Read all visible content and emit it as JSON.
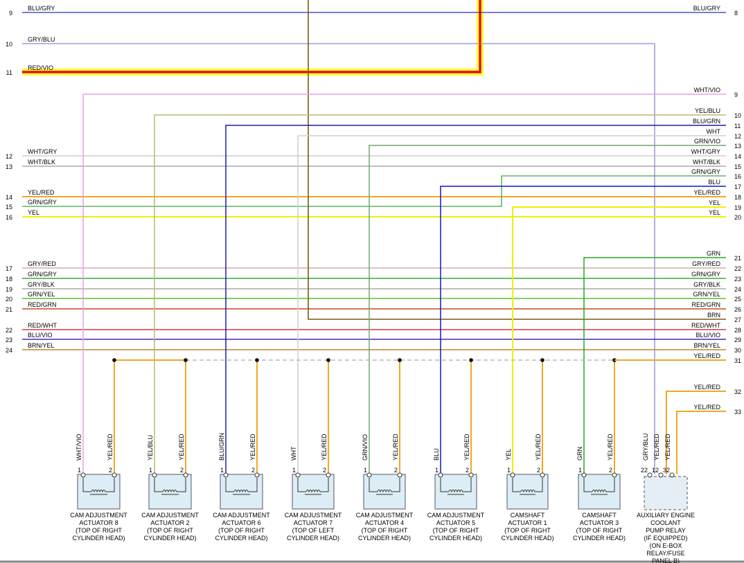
{
  "left_wires": [
    {
      "pin": "9",
      "label": "BLU/GRY"
    },
    {
      "pin": "10",
      "label": "GRY/BLU"
    },
    {
      "pin": "11",
      "label": "RED/VIO"
    },
    {
      "pin": "12",
      "label": "WHT/GRY"
    },
    {
      "pin": "13",
      "label": "WHT/BLK"
    },
    {
      "pin": "14",
      "label": "YEL/RED"
    },
    {
      "pin": "15",
      "label": "GRN/GRY"
    },
    {
      "pin": "16",
      "label": "YEL"
    },
    {
      "pin": "17",
      "label": "GRY/RED"
    },
    {
      "pin": "18",
      "label": "GRN/GRY"
    },
    {
      "pin": "19",
      "label": "GRY/BLK"
    },
    {
      "pin": "20",
      "label": "GRN/YEL"
    },
    {
      "pin": "21",
      "label": "RED/GRN"
    },
    {
      "pin": "22",
      "label": "RED/WHT"
    },
    {
      "pin": "23",
      "label": "BLU/VIO"
    },
    {
      "pin": "24",
      "label": "BRN/YEL"
    }
  ],
  "right_wires": [
    {
      "pin": "8",
      "label": "BLU/GRY"
    },
    {
      "pin": "9",
      "label": "WHT/VIO"
    },
    {
      "pin": "10",
      "label": "YEL/BLU"
    },
    {
      "pin": "11",
      "label": "BLU/GRN"
    },
    {
      "pin": "12",
      "label": "WHT"
    },
    {
      "pin": "13",
      "label": "GRN/VIO"
    },
    {
      "pin": "14",
      "label": "WHT/GRY"
    },
    {
      "pin": "15",
      "label": "WHT/BLK"
    },
    {
      "pin": "16",
      "label": "GRN/GRY"
    },
    {
      "pin": "17",
      "label": "BLU"
    },
    {
      "pin": "18",
      "label": "YEL/RED"
    },
    {
      "pin": "19",
      "label": "YEL"
    },
    {
      "pin": "20",
      "label": "YEL"
    },
    {
      "pin": "21",
      "label": "GRN"
    },
    {
      "pin": "22",
      "label": "GRY/RED"
    },
    {
      "pin": "23",
      "label": "GRN/GRY"
    },
    {
      "pin": "24",
      "label": "GRY/BLK"
    },
    {
      "pin": "25",
      "label": "GRN/YEL"
    },
    {
      "pin": "26",
      "label": "RED/GRN"
    },
    {
      "pin": "27",
      "label": "BRN"
    },
    {
      "pin": "28",
      "label": "RED/WHT"
    },
    {
      "pin": "29",
      "label": "BLU/VIO"
    },
    {
      "pin": "30",
      "label": "BRN/YEL"
    },
    {
      "pin": "31",
      "label": "YEL/RED"
    },
    {
      "pin": "32",
      "label": "YEL/RED"
    },
    {
      "pin": "33",
      "label": "YEL/RED"
    }
  ],
  "components": [
    {
      "pins": [
        "1",
        "2"
      ],
      "wires": [
        "WHT/VIO",
        "YEL/RED"
      ],
      "name": [
        "CAM ADJUSTMENT",
        "ACTUATOR 8",
        "(TOP OF RIGHT",
        "CYLINDER HEAD)"
      ]
    },
    {
      "pins": [
        "1",
        "2"
      ],
      "wires": [
        "YEL/BLU",
        "YEL/RED"
      ],
      "name": [
        "CAM ADJUSTMENT",
        "ACTUATOR 2",
        "(TOP OF RIGHT",
        "CYLINDER HEAD)"
      ]
    },
    {
      "pins": [
        "1",
        "2"
      ],
      "wires": [
        "BLU/GRN",
        "YEL/RED"
      ],
      "name": [
        "CAM ADJUSTMENT",
        "ACTUATOR 6",
        "(TOP OF RIGHT",
        "CYLINDER HEAD)"
      ]
    },
    {
      "pins": [
        "1",
        "2"
      ],
      "wires": [
        "WHT",
        "YEL/RED"
      ],
      "name": [
        "CAM ADJUSTMENT",
        "ACTUATOR 7",
        "(TOP OF LEFT",
        "CYLINDER HEAD)"
      ]
    },
    {
      "pins": [
        "1",
        "2"
      ],
      "wires": [
        "GRN/VIO",
        "YEL/RED"
      ],
      "name": [
        "CAM ADJUSTMENT",
        "ACTUATOR 4",
        "(TOP OF RIGHT",
        "CYLINDER HEAD)"
      ]
    },
    {
      "pins": [
        "1",
        "2"
      ],
      "wires": [
        "BLU",
        "YEL/RED"
      ],
      "name": [
        "CAM ADJUSTMENT",
        "ACTUATOR 5",
        "(TOP OF RIGHT",
        "CYLINDER HEAD)"
      ]
    },
    {
      "pins": [
        "1",
        "2"
      ],
      "wires": [
        "YEL",
        "YEL/RED"
      ],
      "name": [
        "CAMSHAFT",
        "ACTUATOR 1",
        "(TOP OF RIGHT",
        "CYLINDER HEAD)"
      ]
    },
    {
      "pins": [
        "1",
        "2"
      ],
      "wires": [
        "GRN",
        "YEL/RED"
      ],
      "name": [
        "CAMSHAFT",
        "ACTUATOR 3",
        "(TOP OF RIGHT",
        "CYLINDER HEAD)"
      ]
    },
    {
      "pins": [
        "22",
        "12",
        "32"
      ],
      "wires": [
        "GRY/BLU",
        "YEL/RED",
        "YEL/RED"
      ],
      "name": [
        "AUXILIARY ENGINE",
        "COOLANT",
        "PUMP RELAY",
        "(IF EQUIPPED)",
        "(ON E-BOX",
        "RELAY/FUSE",
        "PANEL B)"
      ]
    }
  ]
}
